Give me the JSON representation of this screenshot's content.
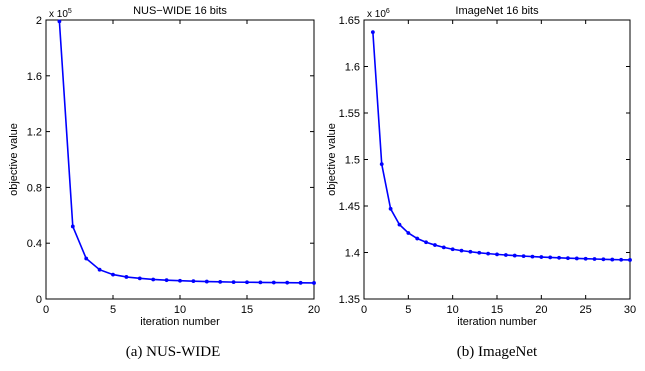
{
  "chart_data": [
    {
      "type": "line",
      "title": "NUS−WIDE 16 bits",
      "xlabel": "iteration number",
      "ylabel": "objective value",
      "exponent": "x 10",
      "exponent_power": "5",
      "caption": "(a)  NUS-WIDE",
      "xlim": [
        0,
        20
      ],
      "ylim": [
        0,
        200000
      ],
      "xticks": [
        0,
        5,
        10,
        15,
        20
      ],
      "yticks": [
        0,
        40000,
        80000,
        120000,
        160000,
        200000
      ],
      "yticklabels": [
        "0",
        "0.4",
        "0.8",
        "1.2",
        "1.6",
        "2"
      ],
      "color": "#0000ff",
      "series": [
        {
          "x": [
            1,
            2,
            3,
            4,
            5,
            6,
            7,
            8,
            9,
            10,
            11,
            12,
            13,
            14,
            15,
            16,
            17,
            18,
            19,
            20
          ],
          "values": [
            199000,
            52000,
            29000,
            21000,
            17500,
            15800,
            14800,
            14000,
            13500,
            13100,
            12800,
            12500,
            12300,
            12100,
            12000,
            11900,
            11800,
            11700,
            11600,
            11500
          ]
        }
      ]
    },
    {
      "type": "line",
      "title": "ImageNet 16 bits",
      "xlabel": "iteration number",
      "ylabel": "objective value",
      "exponent": "x 10",
      "exponent_power": "6",
      "caption": "(b)  ImageNet",
      "xlim": [
        0,
        30
      ],
      "ylim": [
        1350000,
        1650000
      ],
      "xticks": [
        0,
        5,
        10,
        15,
        20,
        25,
        30
      ],
      "yticks": [
        1350000,
        1400000,
        1450000,
        1500000,
        1550000,
        1600000,
        1650000
      ],
      "yticklabels": [
        "1.35",
        "1.4",
        "1.45",
        "1.5",
        "1.55",
        "1.6",
        "1.65"
      ],
      "color": "#0000ff",
      "series": [
        {
          "x": [
            1,
            2,
            3,
            4,
            5,
            6,
            7,
            8,
            9,
            10,
            11,
            12,
            13,
            14,
            15,
            16,
            17,
            18,
            19,
            20,
            21,
            22,
            23,
            24,
            25,
            26,
            27,
            28,
            29,
            30
          ],
          "values": [
            1637000,
            1495000,
            1447000,
            1430000,
            1421000,
            1415000,
            1411000,
            1408000,
            1405500,
            1403500,
            1402000,
            1400800,
            1399700,
            1398800,
            1398000,
            1397300,
            1396700,
            1396100,
            1395600,
            1395100,
            1394700,
            1394300,
            1393900,
            1393600,
            1393300,
            1393000,
            1392700,
            1392400,
            1392200,
            1392000
          ]
        }
      ]
    }
  ]
}
